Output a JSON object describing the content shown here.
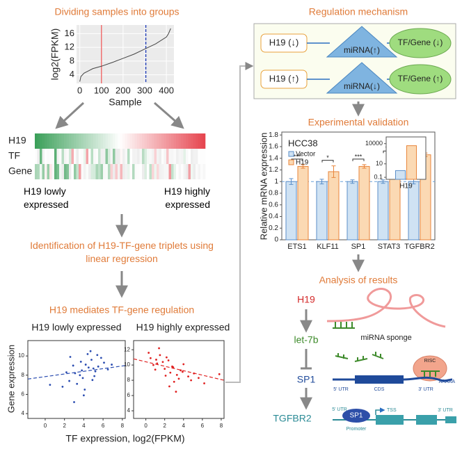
{
  "grouping": {
    "title": "Dividing samples into groups",
    "chart": {
      "type": "line",
      "xlabel": "Sample",
      "ylabel": "log2(FPKM)",
      "x": [
        0,
        5,
        20,
        60,
        100,
        150,
        200,
        250,
        300,
        350,
        400,
        410,
        420
      ],
      "values": [
        2,
        3.5,
        4.5,
        5.8,
        6.5,
        7.6,
        8.8,
        10,
        11.5,
        13,
        15,
        16,
        17.5
      ],
      "color": "#444444",
      "xlim": [
        -15,
        435
      ],
      "ylim": [
        1.5,
        18.5
      ],
      "xticks": [
        0,
        100,
        200,
        300,
        400
      ],
      "yticks": [
        4,
        8,
        12,
        16
      ],
      "grid": true,
      "markers": [
        {
          "x": 100,
          "color": "#f07070",
          "style": "solid"
        },
        {
          "x": 305,
          "color": "#2a45b8",
          "style": "dashed"
        }
      ]
    },
    "heatmap_rows": [
      "H19",
      "TF",
      "Gene"
    ],
    "low_label": "H19 lowly expressed",
    "high_label": "H19 highly expressed"
  },
  "identification": "Identification of H19-TF-gene triplets using linear regression",
  "mediation": {
    "title": "H19 mediates TF-gene regulation",
    "ylabel": "Gene expression",
    "xlabel": "TF expression, log2(FPKM)",
    "plots": [
      {
        "type": "scatter",
        "subtitle": "H19 lowly expressed",
        "color": "#2a4cb0",
        "x": [
          3.1,
          4.2,
          5.0,
          2.5,
          4.8,
          3.6,
          5.5,
          6.1,
          1.8,
          4.4,
          3.9,
          5.2,
          2.9,
          4.0,
          6.5,
          3.3,
          4.7,
          5.8,
          2.2,
          4.1,
          3.7,
          5.1,
          0.5,
          4.5,
          6.9,
          3.0,
          4.9,
          2.6,
          5.4,
          3.8
        ],
        "y": [
          8.2,
          9.1,
          8.7,
          7.4,
          9.6,
          8.0,
          8.9,
          9.3,
          6.8,
          10.2,
          7.7,
          8.4,
          9.0,
          5.9,
          8.6,
          7.1,
          10.5,
          9.8,
          8.3,
          6.5,
          9.4,
          7.9,
          7.0,
          8.8,
          9.1,
          5.2,
          7.5,
          9.9,
          10.1,
          8.5
        ],
        "xlim": [
          -1.8,
          8.3
        ],
        "ylim": [
          3.5,
          11.6
        ],
        "xticks": [
          0,
          2,
          4,
          6,
          8
        ],
        "yticks": [
          4,
          6,
          8,
          10
        ],
        "trend": [
          7.6,
          9.0
        ]
      },
      {
        "type": "scatter",
        "subtitle": "H19 highly expressed",
        "color": "#e02020",
        "x": [
          0.5,
          1.2,
          2.0,
          1.5,
          2.8,
          3.3,
          0.8,
          2.4,
          3.9,
          4.5,
          1.0,
          2.2,
          3.0,
          5.1,
          1.8,
          2.6,
          4.0,
          0.3,
          3.5,
          6.2,
          1.4,
          2.9,
          4.8,
          2.1,
          3.7,
          1.1,
          5.6,
          2.5,
          7.8,
          3.2
        ],
        "y": [
          10.9,
          10.2,
          9.5,
          11.3,
          9.8,
          8.7,
          10.0,
          10.6,
          9.1,
          8.5,
          9.4,
          11.0,
          7.8,
          8.9,
          10.4,
          9.0,
          10.1,
          11.6,
          8.2,
          7.6,
          12.2,
          9.7,
          8.0,
          8.6,
          9.3,
          10.7,
          8.3,
          7.2,
          8.8,
          6.5
        ],
        "xlim": [
          -1.3,
          8.3
        ],
        "ylim": [
          3,
          13.2
        ],
        "xticks": [
          0,
          2,
          4,
          6,
          8
        ],
        "yticks": [
          4,
          6,
          8,
          10,
          12
        ],
        "trend": [
          10.8,
          8.0
        ]
      }
    ]
  },
  "mechanism": {
    "title": "Regulation mechanism",
    "rows": [
      {
        "lnc": "H19 (↓)",
        "mirna": "miRNA(↑)",
        "target": "TF/Gene (↓)"
      },
      {
        "lnc": "H19 (↑)",
        "mirna": "miRNA(↓)",
        "target": "TF/Gene (↑)"
      }
    ]
  },
  "validation": {
    "title": "Experimental validation",
    "chart": {
      "type": "bar",
      "subtitle": "HCC38",
      "ylabel": "Relative mRNA expression",
      "categories": [
        "ETS1",
        "KLF11",
        "SP1",
        "STAT3",
        "TGFBR2"
      ],
      "series": [
        {
          "name": "Vector",
          "color": "#cfe2f3",
          "edge": "#5b8fc9",
          "values": [
            1,
            1,
            1,
            1,
            1
          ],
          "errors": [
            0.05,
            0.04,
            0.03,
            0.03,
            0.04
          ]
        },
        {
          "name": "H19",
          "color": "#fbd9b3",
          "edge": "#e8853b",
          "values": [
            1.26,
            1.17,
            1.26,
            1.4,
            1.46
          ],
          "errors": [
            0.03,
            0.1,
            0.03,
            0.03,
            0.03
          ]
        }
      ],
      "significance": [
        "***",
        "*",
        "***",
        "***",
        "***"
      ],
      "reference": 1,
      "ylim": [
        0,
        1.85
      ],
      "yticks": [
        0,
        0.2,
        0.4,
        0.6,
        0.8,
        1,
        1.2,
        1.4,
        1.6,
        1.8
      ]
    },
    "inset": {
      "type": "bar",
      "log": true,
      "categories": [
        "H19"
      ],
      "series": [
        {
          "color": "#cfe2f3",
          "edge": "#5b8fc9",
          "values": [
            1
          ]
        },
        {
          "color": "#fbd9b3",
          "edge": "#e8853b",
          "values": [
            5000
          ]
        }
      ],
      "ylim": [
        0.05,
        100000
      ],
      "yticks": [
        0.1,
        10,
        10000
      ]
    }
  },
  "analysis": {
    "title": "Analysis of results",
    "chain": [
      "H19",
      "let-7b",
      "SP1",
      "TGFBR2"
    ],
    "sponge": "miRNA sponge",
    "risc": "RISC",
    "mrna": [
      "5' UTR",
      "CDS",
      "3' UTR",
      "AAAAA"
    ],
    "gene": [
      "5' UTR",
      "SP1",
      "TSS",
      "3' UTR",
      "Promoter"
    ]
  }
}
